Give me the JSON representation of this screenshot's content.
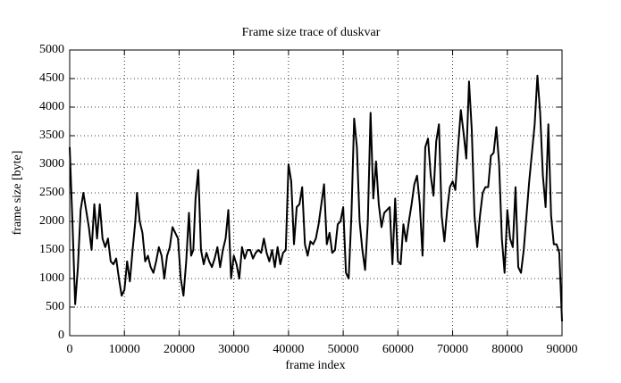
{
  "chart_data": {
    "type": "line",
    "title": "Frame size trace of duskvar",
    "x_label": "frame index",
    "y_label": "frame size [byte]",
    "xlim": [
      0,
      90000
    ],
    "xticks": [
      0,
      10000,
      20000,
      30000,
      40000,
      50000,
      60000,
      70000,
      80000,
      90000
    ],
    "ylim": [
      0,
      5000
    ],
    "yticks": [
      0,
      500,
      1000,
      1500,
      2000,
      2500,
      3000,
      3500,
      4000,
      4500,
      5000
    ],
    "grid": true,
    "x": [
      0,
      500,
      1000,
      1500,
      2000,
      2500,
      3000,
      3500,
      4000,
      4500,
      5000,
      5500,
      6000,
      6500,
      7000,
      7500,
      8000,
      8500,
      9000,
      9500,
      10000,
      10500,
      11000,
      11500,
      12000,
      12300,
      12800,
      13300,
      13800,
      14300,
      14800,
      15300,
      15800,
      16300,
      16800,
      17300,
      17800,
      18300,
      18800,
      19300,
      19800,
      20300,
      20800,
      21300,
      21800,
      22200,
      22600,
      23000,
      23500,
      24000,
      24500,
      25000,
      25500,
      26000,
      26500,
      27000,
      27500,
      28000,
      28500,
      29000,
      29500,
      30000,
      30500,
      31000,
      31500,
      32000,
      32500,
      33000,
      33500,
      34000,
      34500,
      35000,
      35500,
      36000,
      36500,
      37000,
      37500,
      38000,
      38500,
      39000,
      39500,
      40000,
      40500,
      41000,
      41500,
      42000,
      42500,
      43000,
      43500,
      44000,
      44500,
      45000,
      45500,
      46000,
      46500,
      47000,
      47500,
      48000,
      48500,
      49000,
      49500,
      50000,
      50500,
      51000,
      51500,
      52000,
      52500,
      53000,
      53500,
      54000,
      54500,
      55000,
      55500,
      56000,
      56500,
      57000,
      57500,
      58000,
      58500,
      59000,
      59500,
      60000,
      60500,
      61000,
      61500,
      62000,
      62500,
      63000,
      63500,
      64000,
      64500,
      65000,
      65500,
      66000,
      66500,
      67000,
      67500,
      68000,
      68500,
      69000,
      69500,
      70000,
      70500,
      71000,
      71500,
      72000,
      72500,
      73000,
      73500,
      74000,
      74500,
      75000,
      75500,
      76000,
      76500,
      77000,
      77500,
      78000,
      78500,
      79000,
      79500,
      80000,
      80500,
      81000,
      81500,
      82000,
      82500,
      83000,
      83500,
      84000,
      84500,
      85000,
      85500,
      86000,
      86500,
      87000,
      87500,
      88000,
      88500,
      89000,
      89500,
      90000
    ],
    "series": [
      {
        "color": "#000000",
        "values": [
          3300,
          2000,
          550,
          1200,
          2200,
          2500,
          2200,
          1900,
          1500,
          2300,
          1700,
          2300,
          1700,
          1550,
          1700,
          1300,
          1250,
          1350,
          1000,
          700,
          800,
          1300,
          950,
          1500,
          2000,
          2500,
          2000,
          1800,
          1300,
          1400,
          1200,
          1100,
          1300,
          1550,
          1400,
          1000,
          1400,
          1550,
          1900,
          1800,
          1700,
          1000,
          700,
          1300,
          2150,
          1400,
          1500,
          2400,
          2900,
          1500,
          1250,
          1450,
          1300,
          1200,
          1350,
          1550,
          1200,
          1500,
          1700,
          2200,
          1000,
          1400,
          1250,
          1000,
          1550,
          1350,
          1500,
          1500,
          1350,
          1450,
          1500,
          1450,
          1700,
          1450,
          1300,
          1500,
          1200,
          1550,
          1250,
          1450,
          1500,
          3000,
          2700,
          1600,
          2250,
          2300,
          2600,
          1600,
          1400,
          1650,
          1600,
          1700,
          1950,
          2300,
          2650,
          1600,
          1800,
          1450,
          1500,
          1950,
          2000,
          2250,
          1100,
          1000,
          2100,
          3800,
          3300,
          2000,
          1500,
          1150,
          2000,
          3900,
          2400,
          3050,
          2300,
          1900,
          2150,
          2200,
          2250,
          1250,
          2400,
          1300,
          1250,
          1950,
          1650,
          2000,
          2300,
          2650,
          2800,
          2300,
          1400,
          3300,
          3450,
          2800,
          2450,
          3400,
          3700,
          2100,
          1650,
          2200,
          2600,
          2700,
          2550,
          3300,
          3950,
          3550,
          3100,
          4450,
          3600,
          2100,
          1550,
          2100,
          2500,
          2600,
          2600,
          3150,
          3200,
          3650,
          3000,
          1700,
          1100,
          2200,
          1700,
          1550,
          2600,
          1200,
          1100,
          1500,
          2100,
          2700,
          3200,
          3700,
          4550,
          3900,
          2800,
          2250,
          3700,
          2100,
          1600,
          1600,
          1450,
          250
        ]
      }
    ]
  }
}
